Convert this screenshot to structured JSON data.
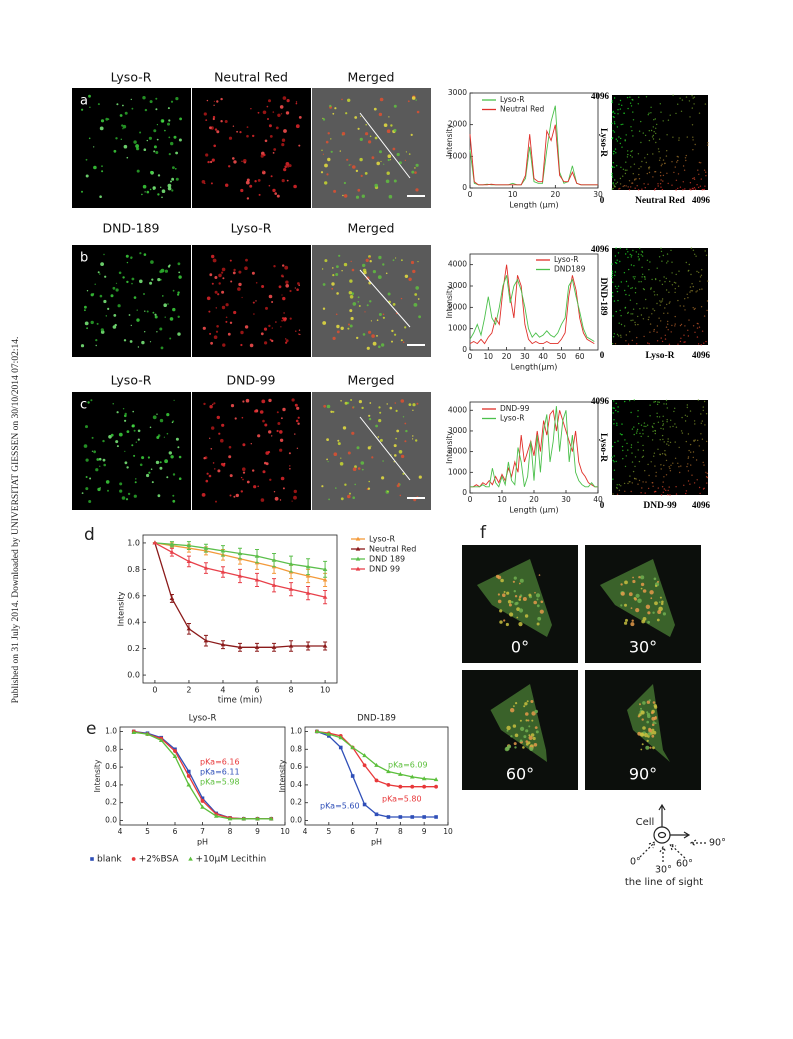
{
  "watermark": "Published on 31 July 2014. Downloaded by UNIVERSITAT GIESSEN on 30/10/2014 07:02:14.",
  "panel_labels": [
    "a",
    "b",
    "c",
    "d",
    "e",
    "f"
  ],
  "micrograph_titles": [
    [
      "Lyso-R",
      "Neutral Red",
      "Merged"
    ],
    [
      "DND-189",
      "Lyso-R",
      "Merged"
    ],
    [
      "Lyso-R",
      "DND-99",
      "Merged"
    ]
  ],
  "colocalization": [
    {
      "x_label": "Neutral Red",
      "y_label": "Lyso-R",
      "xticks": [
        0,
        4096
      ],
      "yticks": [
        4096
      ]
    },
    {
      "x_label": "Lyso-R",
      "y_label": "DND-189",
      "xticks": [
        0,
        4096
      ],
      "yticks": [
        4096
      ]
    },
    {
      "x_label": "DND-99",
      "y_label": "Lyso-R",
      "xticks": [
        0,
        4096
      ],
      "yticks": [
        4096
      ]
    }
  ],
  "chart_data": [
    {
      "type": "line",
      "x_label": "Length (μm)",
      "y_label": "Intensity",
      "legend": "upper left",
      "x": [
        0,
        1,
        2,
        3,
        4,
        5,
        6,
        7,
        8,
        9,
        10,
        11,
        12,
        13,
        14,
        15,
        16,
        17,
        18,
        19,
        20,
        21,
        22,
        23,
        24,
        25,
        26,
        27,
        28,
        29,
        30
      ],
      "xlim": [
        0,
        30
      ],
      "ylim": [
        0,
        3000
      ],
      "xticks": [
        0,
        10,
        20,
        30
      ],
      "yticks": [
        0,
        1000,
        2000,
        3000
      ],
      "series": [
        {
          "name": "Lyso-R",
          "color": "#4cc04c",
          "values": [
            1200,
            150,
            100,
            100,
            120,
            100,
            100,
            100,
            100,
            100,
            150,
            100,
            100,
            300,
            1300,
            200,
            150,
            150,
            1200,
            2100,
            2600,
            500,
            150,
            200,
            700,
            150,
            100,
            100,
            100,
            100,
            100
          ]
        },
        {
          "name": "Neutral Red",
          "color": "#e0302a",
          "values": [
            1700,
            200,
            100,
            100,
            100,
            120,
            100,
            100,
            100,
            100,
            100,
            100,
            100,
            400,
            1700,
            300,
            200,
            200,
            1800,
            1500,
            2000,
            400,
            200,
            200,
            500,
            150,
            100,
            100,
            100,
            100,
            100
          ]
        }
      ]
    },
    {
      "type": "line",
      "x_label": "Length(μm)",
      "y_label": "Intensity",
      "legend": "upper right",
      "x": [
        0,
        2,
        4,
        6,
        8,
        10,
        12,
        14,
        16,
        18,
        20,
        22,
        24,
        26,
        28,
        30,
        32,
        34,
        36,
        38,
        40,
        42,
        44,
        46,
        48,
        50,
        52,
        54,
        56,
        58,
        60,
        62,
        64,
        66,
        68
      ],
      "xlim": [
        0,
        70
      ],
      "ylim": [
        0,
        4500
      ],
      "xticks": [
        0,
        10,
        20,
        30,
        40,
        50,
        60
      ],
      "yticks": [
        0,
        1000,
        2000,
        3000,
        4000
      ],
      "series": [
        {
          "name": "Lyso-R",
          "color": "#e0302a",
          "values": [
            300,
            400,
            300,
            500,
            300,
            600,
            800,
            1500,
            1200,
            2800,
            4000,
            2500,
            1500,
            3500,
            3000,
            1200,
            500,
            300,
            400,
            300,
            300,
            400,
            300,
            300,
            300,
            500,
            800,
            2500,
            3500,
            2800,
            1500,
            800,
            500,
            400,
            300
          ]
        },
        {
          "name": "DND189",
          "color": "#4cc04c",
          "values": [
            500,
            800,
            1200,
            700,
            1500,
            2500,
            1500,
            1200,
            2000,
            3000,
            3500,
            2200,
            3000,
            3300,
            2800,
            2000,
            1000,
            600,
            800,
            600,
            700,
            900,
            700,
            600,
            800,
            1200,
            1500,
            3000,
            3300,
            2500,
            1800,
            1000,
            600,
            500,
            400
          ]
        }
      ]
    },
    {
      "type": "line",
      "x_label": "Length (μm)",
      "y_label": "Intensity",
      "legend": "upper left",
      "x": [
        0,
        1,
        2,
        3,
        4,
        5,
        6,
        7,
        8,
        9,
        10,
        11,
        12,
        13,
        14,
        15,
        16,
        17,
        18,
        19,
        20,
        21,
        22,
        23,
        24,
        25,
        26,
        27,
        28,
        29,
        30,
        31,
        32,
        33,
        34,
        35,
        36,
        37,
        38,
        39,
        40
      ],
      "xlim": [
        0,
        40
      ],
      "ylim": [
        0,
        4400
      ],
      "xticks": [
        0,
        10,
        20,
        30,
        40
      ],
      "yticks": [
        0,
        1000,
        2000,
        3000,
        4000
      ],
      "series": [
        {
          "name": "DND-99",
          "color": "#e0302a",
          "values": [
            300,
            300,
            400,
            300,
            500,
            400,
            600,
            400,
            800,
            500,
            900,
            600,
            1200,
            800,
            1500,
            1000,
            2800,
            1500,
            2000,
            2500,
            1800,
            3000,
            2000,
            3500,
            2800,
            3800,
            4000,
            3000,
            4000,
            3500,
            3000,
            2500,
            2000,
            3000,
            1500,
            1000,
            800,
            500,
            400,
            300,
            300
          ]
        },
        {
          "name": "Lyso-R",
          "color": "#4cc04c",
          "values": [
            300,
            300,
            300,
            300,
            400,
            300,
            300,
            1200,
            500,
            300,
            800,
            400,
            1500,
            600,
            400,
            2200,
            1500,
            300,
            800,
            2500,
            600,
            2800,
            1000,
            3000,
            3800,
            1500,
            2500,
            4200,
            2000,
            3500,
            4000,
            1500,
            2800,
            1000,
            600,
            400,
            300,
            300,
            500,
            300,
            300
          ]
        }
      ]
    },
    {
      "type": "line",
      "x_label": "time (min)",
      "y_label": "Intensity",
      "legend": "outside right",
      "x": [
        0,
        1,
        2,
        3,
        4,
        5,
        6,
        7,
        8,
        9,
        10
      ],
      "xlim": [
        -0.7,
        10.7
      ],
      "ylim": [
        -0.06,
        1.06
      ],
      "xticks": [
        0,
        2,
        4,
        6,
        8,
        10
      ],
      "yticks": [
        {
          "value": 0,
          "label": "0.0"
        },
        0.2,
        0.4,
        0.6,
        0.8,
        {
          "value": 1,
          "label": "1.0"
        }
      ],
      "series": [
        {
          "name": "Lyso-R",
          "color": "#f39a3a",
          "marker": "triangle",
          "values": [
            1.0,
            0.98,
            0.96,
            0.94,
            0.91,
            0.88,
            0.85,
            0.82,
            0.78,
            0.75,
            0.72
          ],
          "errors": [
            0,
            0.02,
            0.03,
            0.03,
            0.04,
            0.04,
            0.05,
            0.05,
            0.05,
            0.05,
            0.05
          ]
        },
        {
          "name": "Neutral Red",
          "color": "#8b1a1a",
          "marker": "triangle",
          "values": [
            1.0,
            0.58,
            0.35,
            0.26,
            0.23,
            0.21,
            0.21,
            0.21,
            0.22,
            0.22,
            0.22
          ],
          "errors": [
            0,
            0.03,
            0.04,
            0.04,
            0.03,
            0.03,
            0.03,
            0.03,
            0.04,
            0.03,
            0.03
          ]
        },
        {
          "name": "DND 189",
          "color": "#5cbf4c",
          "marker": "triangle",
          "values": [
            1.0,
            0.99,
            0.98,
            0.96,
            0.94,
            0.92,
            0.9,
            0.87,
            0.84,
            0.82,
            0.8
          ],
          "errors": [
            0,
            0.02,
            0.03,
            0.03,
            0.04,
            0.04,
            0.05,
            0.05,
            0.06,
            0.06,
            0.06
          ]
        },
        {
          "name": "DND 99",
          "color": "#e8404a",
          "marker": "triangle",
          "values": [
            1.0,
            0.93,
            0.86,
            0.81,
            0.78,
            0.75,
            0.72,
            0.68,
            0.65,
            0.62,
            0.59
          ],
          "errors": [
            0,
            0.03,
            0.04,
            0.04,
            0.04,
            0.05,
            0.05,
            0.05,
            0.05,
            0.05,
            0.05
          ]
        }
      ]
    },
    {
      "type": "line",
      "title": "Lyso-R",
      "x_label": "pH",
      "y_label": "Intensity",
      "legend": "below",
      "x": [
        4.5,
        5,
        5.5,
        6,
        6.5,
        7,
        7.5,
        8,
        8.5,
        9,
        9.5
      ],
      "xlim": [
        4,
        10
      ],
      "ylim": [
        -0.05,
        1.05
      ],
      "xticks": [
        4,
        5,
        6,
        7,
        8,
        9,
        10
      ],
      "yticks": [
        {
          "value": 0,
          "label": "0.0"
        },
        0.2,
        0.4,
        0.6,
        0.8,
        {
          "value": 1,
          "label": "1.0"
        }
      ],
      "series": [
        {
          "name": "blank",
          "color": "#2f4fb8",
          "marker": "square",
          "values": [
            1.0,
            0.98,
            0.93,
            0.8,
            0.55,
            0.25,
            0.08,
            0.03,
            0.02,
            0.02,
            0.02
          ]
        },
        {
          "name": "+2%BSA",
          "color": "#e8383a",
          "marker": "circle",
          "values": [
            1.0,
            0.97,
            0.92,
            0.78,
            0.5,
            0.22,
            0.07,
            0.03,
            0.02,
            0.02,
            0.02
          ]
        },
        {
          "name": "+10μM Lecithin",
          "color": "#5cbf3c",
          "marker": "triangle",
          "values": [
            0.99,
            0.97,
            0.9,
            0.72,
            0.4,
            0.15,
            0.05,
            0.02,
            0.02,
            0.02,
            0.02
          ]
        }
      ],
      "annotations": [
        {
          "text": "pKa=6.16",
          "color": "#e8383a"
        },
        {
          "text": "pKa=6.11",
          "color": "#2f4fb8"
        },
        {
          "text": "pKa=5.98",
          "color": "#5cbf3c"
        }
      ]
    },
    {
      "type": "line",
      "title": "DND-189",
      "x_label": "pH",
      "y_label": "Intensity",
      "x": [
        4.5,
        5,
        5.5,
        6,
        6.5,
        7,
        7.5,
        8,
        8.5,
        9,
        9.5
      ],
      "xlim": [
        4,
        10
      ],
      "ylim": [
        -0.05,
        1.05
      ],
      "xticks": [
        4,
        5,
        6,
        7,
        8,
        9,
        10
      ],
      "yticks": [
        {
          "value": 0,
          "label": "0.0"
        },
        0.2,
        0.4,
        0.6,
        0.8,
        {
          "value": 1,
          "label": "1.0"
        }
      ],
      "series": [
        {
          "color": "#2f4fb8",
          "marker": "square",
          "values": [
            1.0,
            0.95,
            0.82,
            0.5,
            0.18,
            0.07,
            0.04,
            0.04,
            0.04,
            0.04,
            0.04
          ]
        },
        {
          "color": "#e8383a",
          "marker": "circle",
          "values": [
            1.0,
            0.98,
            0.95,
            0.82,
            0.62,
            0.45,
            0.4,
            0.38,
            0.38,
            0.38,
            0.38
          ]
        },
        {
          "color": "#5cbf3c",
          "marker": "triangle",
          "values": [
            1.0,
            0.97,
            0.93,
            0.82,
            0.73,
            0.62,
            0.55,
            0.52,
            0.49,
            0.47,
            0.46
          ]
        }
      ],
      "annotations": [
        {
          "text": "pKa=6.09",
          "color": "#5cbf3c"
        },
        {
          "text": "pKa=5.80",
          "color": "#e8383a"
        },
        {
          "text": "pKa=5.60",
          "color": "#2f4fb8"
        }
      ]
    }
  ],
  "panel_f": {
    "angles": [
      "0°",
      "30°",
      "60°",
      "90°"
    ],
    "diagram": {
      "cell": "Cell",
      "sight": "the line of sight",
      "angles": [
        "0°",
        "30°",
        "60°",
        "90°"
      ]
    }
  }
}
